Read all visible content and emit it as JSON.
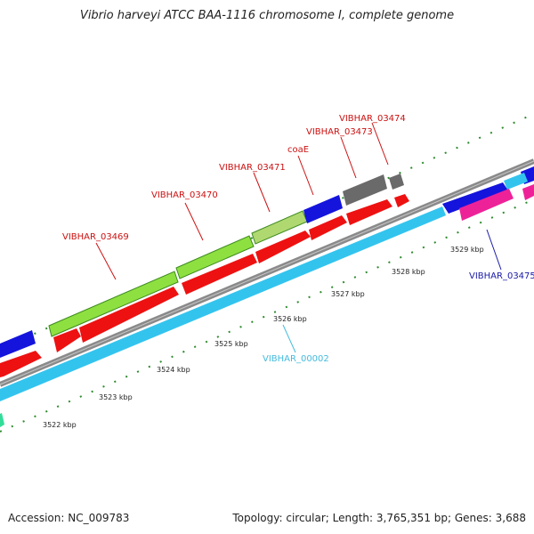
{
  "title": "Vibrio harveyi ATCC BAA-1116 chromosome I, complete genome",
  "footer": {
    "accession": "Accession: NC_009783",
    "summary": "Topology: circular; Length: 3,765,351 bp; Genes: 3,688"
  },
  "colors": {
    "backbone": "#8a8a8a",
    "tick": "#2e8b2e",
    "forward_gene": "#ee1111",
    "reverse_gene": "#33c4ee",
    "blue_gene": "#1414dd",
    "gray_gene": "#6a6a6a",
    "green_gene": "#8ee040",
    "dark_green": "#3c8a1e",
    "magenta_gene": "#ee2298",
    "label_red": "#cc1111",
    "label_blue": "#1a1aa8",
    "label_cyan": "#44bbdd"
  },
  "kbp_labels": [
    "3522 kbp",
    "3523 kbp",
    "3524 kbp",
    "3525 kbp",
    "3526 kbp",
    "3527 kbp",
    "3528 kbp",
    "3529 kbp"
  ],
  "gene_labels": {
    "vibhar_03469": "VIBHAR_03469",
    "vibhar_03470": "VIBHAR_03470",
    "vibhar_03471": "VIBHAR_03471",
    "coae": "coaE",
    "vibhar_03473": "VIBHAR_03473",
    "vibhar_03474": "VIBHAR_03474",
    "vibhar_03475": "VIBHAR_03475",
    "vibhar_00002": "VIBHAR_00002"
  }
}
